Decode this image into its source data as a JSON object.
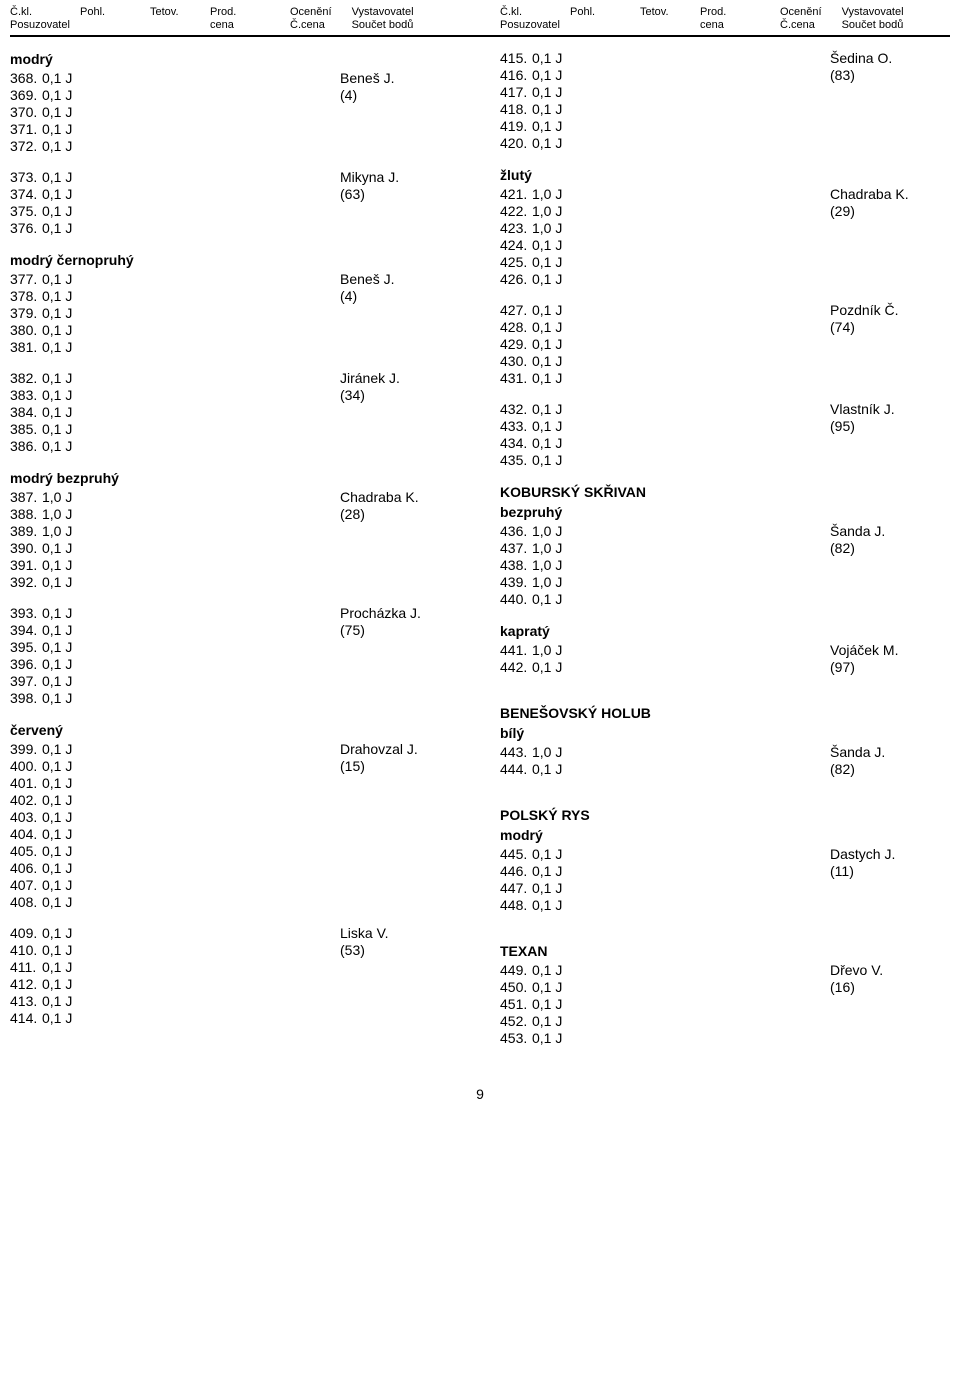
{
  "header": {
    "col1_top": [
      "Č.kl.",
      "Pohl.",
      "Tetov.",
      "Prod.",
      "Ocenění",
      "Vystavovatel"
    ],
    "col1_bot": [
      "Posuzovatel",
      "",
      "",
      "cena",
      "Č.cena",
      "Součet bodů"
    ]
  },
  "left_column": [
    {
      "type": "title",
      "text": "modrý"
    },
    {
      "type": "entry",
      "num": "368.",
      "val": "0,1 J",
      "exh": "Beneš J."
    },
    {
      "type": "entry",
      "num": "369.",
      "val": "0,1 J",
      "exh": "(4)"
    },
    {
      "type": "entry",
      "num": "370.",
      "val": "0,1 J",
      "exh": ""
    },
    {
      "type": "entry",
      "num": "371.",
      "val": "0,1 J",
      "exh": ""
    },
    {
      "type": "entry",
      "num": "372.",
      "val": "0,1 J",
      "exh": ""
    },
    {
      "type": "spacer"
    },
    {
      "type": "entry",
      "num": "373.",
      "val": "0,1 J",
      "exh": "Mikyna J."
    },
    {
      "type": "entry",
      "num": "374.",
      "val": "0,1 J",
      "exh": "(63)"
    },
    {
      "type": "entry",
      "num": "375.",
      "val": "0,1 J",
      "exh": ""
    },
    {
      "type": "entry",
      "num": "376.",
      "val": "0,1 J",
      "exh": ""
    },
    {
      "type": "spacer"
    },
    {
      "type": "title",
      "text": "modrý černopruhý"
    },
    {
      "type": "entry",
      "num": "377.",
      "val": "0,1 J",
      "exh": "Beneš J."
    },
    {
      "type": "entry",
      "num": "378.",
      "val": "0,1 J",
      "exh": "(4)"
    },
    {
      "type": "entry",
      "num": "379.",
      "val": "0,1 J",
      "exh": ""
    },
    {
      "type": "entry",
      "num": "380.",
      "val": "0,1 J",
      "exh": ""
    },
    {
      "type": "entry",
      "num": "381.",
      "val": "0,1 J",
      "exh": ""
    },
    {
      "type": "spacer"
    },
    {
      "type": "entry",
      "num": "382.",
      "val": "0,1 J",
      "exh": "Jiránek J."
    },
    {
      "type": "entry",
      "num": "383.",
      "val": "0,1 J",
      "exh": "(34)"
    },
    {
      "type": "entry",
      "num": "384.",
      "val": "0,1 J",
      "exh": ""
    },
    {
      "type": "entry",
      "num": "385.",
      "val": "0,1 J",
      "exh": ""
    },
    {
      "type": "entry",
      "num": "386.",
      "val": "0,1 J",
      "exh": ""
    },
    {
      "type": "spacer"
    },
    {
      "type": "title",
      "text": "modrý bezpruhý"
    },
    {
      "type": "entry",
      "num": "387.",
      "val": "1,0 J",
      "exh": "Chadraba K."
    },
    {
      "type": "entry",
      "num": "388.",
      "val": "1,0 J",
      "exh": "(28)"
    },
    {
      "type": "entry",
      "num": "389.",
      "val": "1,0 J",
      "exh": ""
    },
    {
      "type": "entry",
      "num": "390.",
      "val": "0,1 J",
      "exh": ""
    },
    {
      "type": "entry",
      "num": "391.",
      "val": "0,1 J",
      "exh": ""
    },
    {
      "type": "entry",
      "num": "392.",
      "val": "0,1 J",
      "exh": ""
    },
    {
      "type": "spacer"
    },
    {
      "type": "entry",
      "num": "393.",
      "val": "0,1 J",
      "exh": "Procházka J."
    },
    {
      "type": "entry",
      "num": "394.",
      "val": "0,1 J",
      "exh": "(75)"
    },
    {
      "type": "entry",
      "num": "395.",
      "val": "0,1 J",
      "exh": ""
    },
    {
      "type": "entry",
      "num": "396.",
      "val": "0,1 J",
      "exh": ""
    },
    {
      "type": "entry",
      "num": "397.",
      "val": "0,1 J",
      "exh": ""
    },
    {
      "type": "entry",
      "num": "398.",
      "val": "0,1 J",
      "exh": ""
    },
    {
      "type": "spacer"
    },
    {
      "type": "title",
      "text": "červený"
    },
    {
      "type": "entry",
      "num": "399.",
      "val": "0,1 J",
      "exh": "Drahovzal J."
    },
    {
      "type": "entry",
      "num": "400.",
      "val": "0,1 J",
      "exh": "(15)"
    },
    {
      "type": "entry",
      "num": "401.",
      "val": "0,1 J",
      "exh": ""
    },
    {
      "type": "entry",
      "num": "402.",
      "val": "0,1 J",
      "exh": ""
    },
    {
      "type": "entry",
      "num": "403.",
      "val": "0,1 J",
      "exh": ""
    },
    {
      "type": "entry",
      "num": "404.",
      "val": "0,1 J",
      "exh": ""
    },
    {
      "type": "entry",
      "num": "405.",
      "val": "0,1 J",
      "exh": ""
    },
    {
      "type": "entry",
      "num": "406.",
      "val": "0,1 J",
      "exh": ""
    },
    {
      "type": "entry",
      "num": "407.",
      "val": "0,1 J",
      "exh": ""
    },
    {
      "type": "entry",
      "num": "408.",
      "val": "0,1 J",
      "exh": ""
    },
    {
      "type": "spacer"
    },
    {
      "type": "entry",
      "num": "409.",
      "val": "0,1 J",
      "exh": "Liska V."
    },
    {
      "type": "entry",
      "num": "410.",
      "val": "0,1 J",
      "exh": "(53)"
    },
    {
      "type": "entry",
      "num": "411.",
      "val": "0,1 J",
      "exh": ""
    },
    {
      "type": "entry",
      "num": "412.",
      "val": "0,1 J",
      "exh": ""
    },
    {
      "type": "entry",
      "num": "413.",
      "val": "0,1 J",
      "exh": ""
    },
    {
      "type": "entry",
      "num": "414.",
      "val": "0,1 J",
      "exh": ""
    }
  ],
  "right_column": [
    {
      "type": "entry",
      "num": "415.",
      "val": "0,1 J",
      "exh": "Šedina O."
    },
    {
      "type": "entry",
      "num": "416.",
      "val": "0,1 J",
      "exh": "(83)"
    },
    {
      "type": "entry",
      "num": "417.",
      "val": "0,1 J",
      "exh": ""
    },
    {
      "type": "entry",
      "num": "418.",
      "val": "0,1 J",
      "exh": ""
    },
    {
      "type": "entry",
      "num": "419.",
      "val": "0,1 J",
      "exh": ""
    },
    {
      "type": "entry",
      "num": "420.",
      "val": "0,1 J",
      "exh": ""
    },
    {
      "type": "spacer"
    },
    {
      "type": "title",
      "text": "žlutý"
    },
    {
      "type": "entry",
      "num": "421.",
      "val": "1,0 J",
      "exh": "Chadraba K."
    },
    {
      "type": "entry",
      "num": "422.",
      "val": "1,0 J",
      "exh": "(29)"
    },
    {
      "type": "entry",
      "num": "423.",
      "val": "1,0 J",
      "exh": ""
    },
    {
      "type": "entry",
      "num": "424.",
      "val": "0,1 J",
      "exh": ""
    },
    {
      "type": "entry",
      "num": "425.",
      "val": "0,1 J",
      "exh": ""
    },
    {
      "type": "entry",
      "num": "426.",
      "val": "0,1 J",
      "exh": ""
    },
    {
      "type": "spacer"
    },
    {
      "type": "entry",
      "num": "427.",
      "val": "0,1 J",
      "exh": "Pozdník Č."
    },
    {
      "type": "entry",
      "num": "428.",
      "val": "0,1 J",
      "exh": "(74)"
    },
    {
      "type": "entry",
      "num": "429.",
      "val": "0,1 J",
      "exh": ""
    },
    {
      "type": "entry",
      "num": "430.",
      "val": "0,1 J",
      "exh": ""
    },
    {
      "type": "entry",
      "num": "431.",
      "val": "0,1 J",
      "exh": ""
    },
    {
      "type": "spacer"
    },
    {
      "type": "entry",
      "num": "432.",
      "val": "0,1 J",
      "exh": "Vlastník J."
    },
    {
      "type": "entry",
      "num": "433.",
      "val": "0,1 J",
      "exh": "(95)"
    },
    {
      "type": "entry",
      "num": "434.",
      "val": "0,1 J",
      "exh": ""
    },
    {
      "type": "entry",
      "num": "435.",
      "val": "0,1 J",
      "exh": ""
    },
    {
      "type": "spacer"
    },
    {
      "type": "title",
      "text": "KOBURSKÝ SKŘIVAN"
    },
    {
      "type": "title",
      "text": "bezpruhý"
    },
    {
      "type": "entry",
      "num": "436.",
      "val": "1,0 J",
      "exh": "Šanda J."
    },
    {
      "type": "entry",
      "num": "437.",
      "val": "1,0 J",
      "exh": "(82)"
    },
    {
      "type": "entry",
      "num": "438.",
      "val": "1,0 J",
      "exh": ""
    },
    {
      "type": "entry",
      "num": "439.",
      "val": "1,0 J",
      "exh": ""
    },
    {
      "type": "entry",
      "num": "440.",
      "val": "0,1 J",
      "exh": ""
    },
    {
      "type": "spacer"
    },
    {
      "type": "title",
      "text": "kapratý"
    },
    {
      "type": "entry",
      "num": "441.",
      "val": "1,0 J",
      "exh": "Vojáček M."
    },
    {
      "type": "entry",
      "num": "442.",
      "val": "0,1 J",
      "exh": "(97)"
    },
    {
      "type": "spacer"
    },
    {
      "type": "spacer"
    },
    {
      "type": "title",
      "text": "BENEŠOVSKÝ HOLUB"
    },
    {
      "type": "title",
      "text": "bílý"
    },
    {
      "type": "entry",
      "num": "443.",
      "val": "1,0 J",
      "exh": "Šanda J."
    },
    {
      "type": "entry",
      "num": "444.",
      "val": "0,1 J",
      "exh": "(82)"
    },
    {
      "type": "spacer"
    },
    {
      "type": "spacer"
    },
    {
      "type": "title",
      "text": "POLSKÝ RYS"
    },
    {
      "type": "title",
      "text": "modrý"
    },
    {
      "type": "entry",
      "num": "445.",
      "val": "0,1 J",
      "exh": "Dastych J."
    },
    {
      "type": "entry",
      "num": "446.",
      "val": "0,1 J",
      "exh": "(11)"
    },
    {
      "type": "entry",
      "num": "447.",
      "val": "0,1 J",
      "exh": ""
    },
    {
      "type": "entry",
      "num": "448.",
      "val": "0,1 J",
      "exh": ""
    },
    {
      "type": "spacer"
    },
    {
      "type": "spacer"
    },
    {
      "type": "title",
      "text": "TEXAN"
    },
    {
      "type": "entry",
      "num": "449.",
      "val": "0,1 J",
      "exh": "Dřevo V."
    },
    {
      "type": "entry",
      "num": "450.",
      "val": "0,1 J",
      "exh": "(16)"
    },
    {
      "type": "entry",
      "num": "451.",
      "val": "0,1 J",
      "exh": ""
    },
    {
      "type": "entry",
      "num": "452.",
      "val": "0,1 J",
      "exh": ""
    },
    {
      "type": "entry",
      "num": "453.",
      "val": "0,1 J",
      "exh": ""
    }
  ],
  "page_number": "9"
}
